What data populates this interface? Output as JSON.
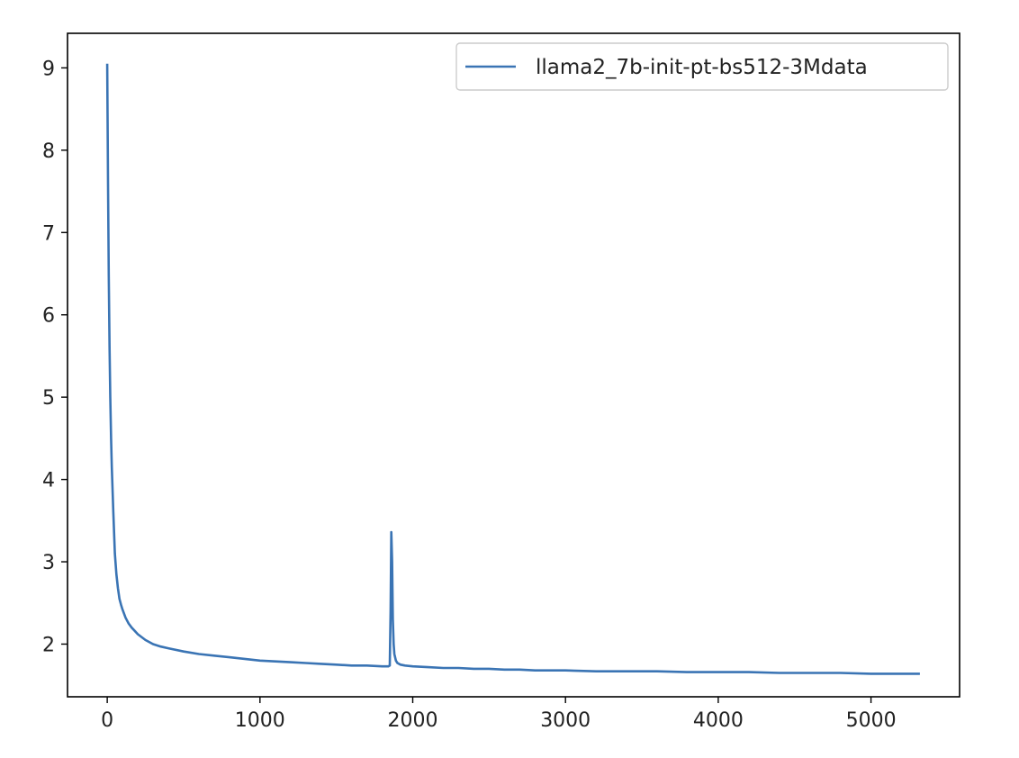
{
  "chart_data": {
    "type": "line",
    "title": "",
    "xlabel": "",
    "ylabel": "",
    "xlim": [
      -260,
      5580
    ],
    "ylim": [
      1.36,
      9.42
    ],
    "xticks": [
      0,
      1000,
      2000,
      3000,
      4000,
      5000
    ],
    "yticks": [
      2,
      3,
      4,
      5,
      6,
      7,
      8,
      9
    ],
    "grid": false,
    "legend_position": "top-right",
    "series": [
      {
        "name": "llama2_7b-init-pt-bs512-3Mdata",
        "color": "#3a74b4",
        "x": [
          0,
          5,
          10,
          15,
          20,
          25,
          30,
          40,
          50,
          60,
          70,
          80,
          90,
          100,
          120,
          140,
          160,
          180,
          200,
          250,
          300,
          350,
          400,
          500,
          600,
          700,
          800,
          900,
          1000,
          1100,
          1200,
          1300,
          1400,
          1500,
          1600,
          1700,
          1800,
          1840,
          1850,
          1855,
          1860,
          1865,
          1870,
          1875,
          1880,
          1890,
          1900,
          1920,
          1950,
          2000,
          2100,
          2200,
          2300,
          2400,
          2500,
          2600,
          2700,
          2800,
          2900,
          3000,
          3200,
          3400,
          3600,
          3800,
          4000,
          4200,
          4400,
          4600,
          4800,
          5000,
          5200,
          5320
        ],
        "values": [
          9.05,
          7.6,
          6.5,
          5.6,
          5.0,
          4.5,
          4.15,
          3.6,
          3.1,
          2.85,
          2.68,
          2.55,
          2.48,
          2.42,
          2.32,
          2.25,
          2.2,
          2.16,
          2.12,
          2.05,
          2.0,
          1.97,
          1.95,
          1.91,
          1.88,
          1.86,
          1.84,
          1.82,
          1.8,
          1.79,
          1.78,
          1.77,
          1.76,
          1.75,
          1.74,
          1.74,
          1.73,
          1.73,
          1.74,
          2.4,
          3.36,
          3.0,
          2.3,
          2.0,
          1.88,
          1.8,
          1.77,
          1.75,
          1.74,
          1.73,
          1.72,
          1.71,
          1.71,
          1.7,
          1.7,
          1.69,
          1.69,
          1.68,
          1.68,
          1.68,
          1.67,
          1.67,
          1.67,
          1.66,
          1.66,
          1.66,
          1.65,
          1.65,
          1.65,
          1.64,
          1.64,
          1.64
        ]
      }
    ]
  }
}
